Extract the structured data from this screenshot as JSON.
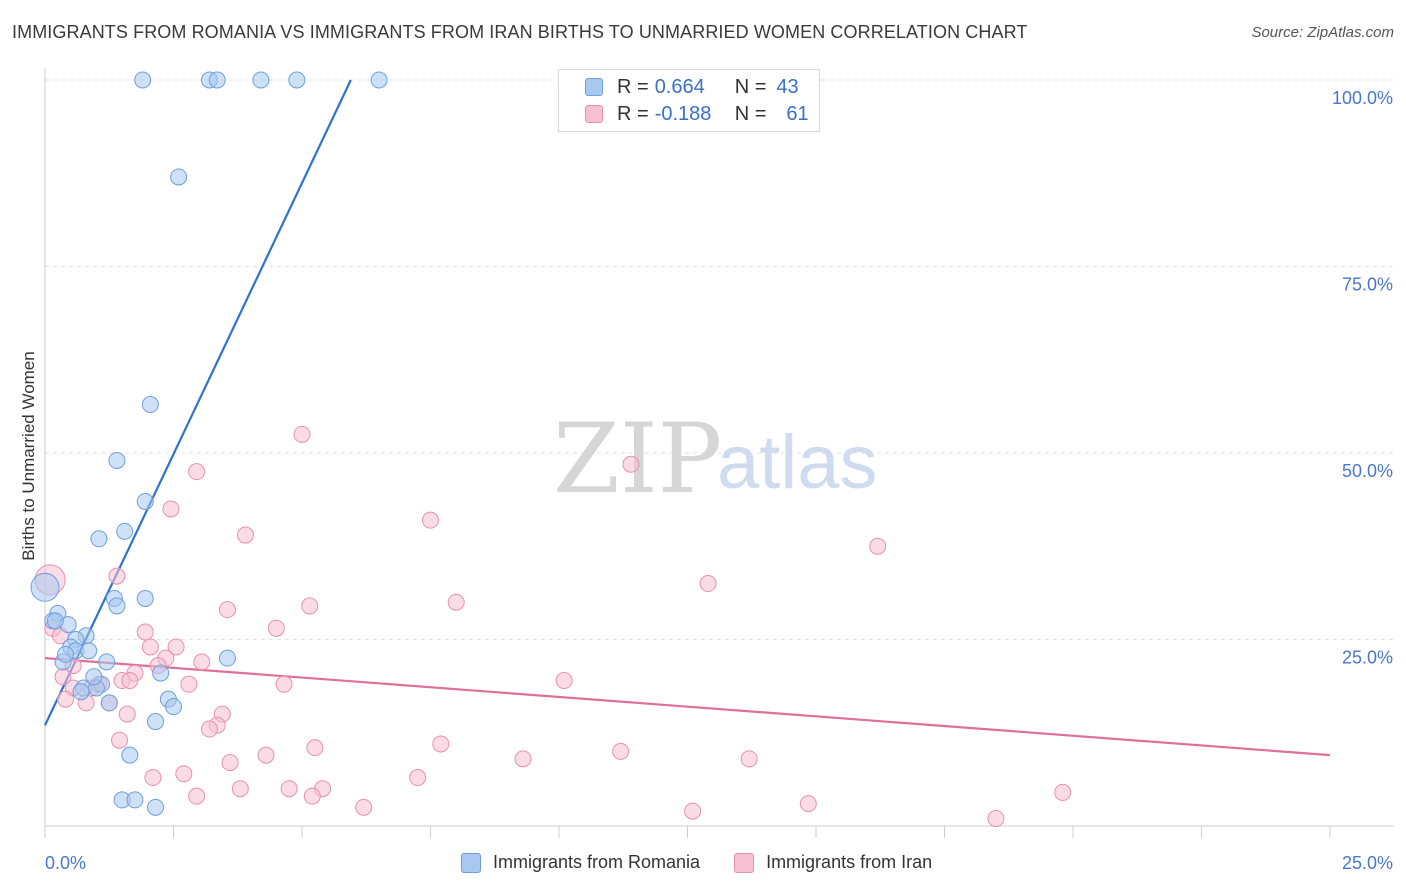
{
  "header": {
    "title": "IMMIGRANTS FROM ROMANIA VS IMMIGRANTS FROM IRAN BIRTHS TO UNMARRIED WOMEN CORRELATION CHART",
    "source": "Source: ZipAtlas.com"
  },
  "legend": {
    "r_label": "R =",
    "n_label": "N =",
    "romania": {
      "r": "0.664",
      "n": "43"
    },
    "iran": {
      "r": "-0.188",
      "n": "61"
    }
  },
  "watermark": {
    "zip": "ZIP",
    "atlas": "atlas"
  },
  "colors": {
    "romania_fill": "#a8c8f0",
    "romania_stroke": "#6e9fdc",
    "romania_line": "#2f72d0",
    "iran_fill": "#f7bfd2",
    "iran_stroke": "#e890b0",
    "iran_line": "#e0709a",
    "tick_text": "#4a78c8",
    "grid": "#e2e2e2"
  },
  "chart_data": {
    "type": "scatter",
    "title": "IMMIGRANTS FROM ROMANIA VS IMMIGRANTS FROM IRAN BIRTHS TO UNMARRIED WOMEN CORRELATION CHART",
    "xlabel": "",
    "ylabel": "Births to Unmarried Women",
    "xlim": [
      0,
      25
    ],
    "ylim": [
      0,
      102
    ],
    "x_tick_labels": [
      "0.0%",
      "25.0%"
    ],
    "y_ticks": [
      {
        "value": 25,
        "label": "25.0%"
      },
      {
        "value": 50,
        "label": "50.0%"
      },
      {
        "value": 75,
        "label": "75.0%"
      },
      {
        "value": 100,
        "label": "100.0%"
      }
    ],
    "grid": true,
    "legend_position": "top-center",
    "series": [
      {
        "name": "Immigrants from Romania",
        "color_key": "romania",
        "r": 0.664,
        "n": 43,
        "trend": {
          "x0": 0,
          "y0": 13.5,
          "x1": 5.95,
          "y1": 100
        },
        "points": [
          {
            "x": 1.9,
            "y": 100
          },
          {
            "x": 3.2,
            "y": 100
          },
          {
            "x": 3.35,
            "y": 100
          },
          {
            "x": 4.2,
            "y": 100
          },
          {
            "x": 4.9,
            "y": 100
          },
          {
            "x": 6.5,
            "y": 100
          },
          {
            "x": 2.6,
            "y": 87
          },
          {
            "x": 2.05,
            "y": 56.5
          },
          {
            "x": 1.4,
            "y": 49
          },
          {
            "x": 1.95,
            "y": 43.5
          },
          {
            "x": 1.55,
            "y": 39.5
          },
          {
            "x": 1.05,
            "y": 38.5
          },
          {
            "x": 1.95,
            "y": 30.5
          },
          {
            "x": 1.35,
            "y": 30.5
          },
          {
            "x": 1.4,
            "y": 29.5
          },
          {
            "x": 0.0,
            "y": 32
          },
          {
            "x": 0.25,
            "y": 28.5
          },
          {
            "x": 0.45,
            "y": 27
          },
          {
            "x": 0.15,
            "y": 27.5
          },
          {
            "x": 0.8,
            "y": 25.5
          },
          {
            "x": 0.6,
            "y": 25
          },
          {
            "x": 0.5,
            "y": 24
          },
          {
            "x": 0.6,
            "y": 23.5
          },
          {
            "x": 0.85,
            "y": 23.5
          },
          {
            "x": 0.35,
            "y": 22
          },
          {
            "x": 1.2,
            "y": 22
          },
          {
            "x": 3.55,
            "y": 22.5
          },
          {
            "x": 2.25,
            "y": 20.5
          },
          {
            "x": 1.1,
            "y": 19
          },
          {
            "x": 0.75,
            "y": 18.5
          },
          {
            "x": 1.0,
            "y": 18.5
          },
          {
            "x": 0.7,
            "y": 18
          },
          {
            "x": 1.25,
            "y": 16.5
          },
          {
            "x": 2.4,
            "y": 17
          },
          {
            "x": 2.5,
            "y": 16
          },
          {
            "x": 2.15,
            "y": 14
          },
          {
            "x": 1.65,
            "y": 9.5
          },
          {
            "x": 1.5,
            "y": 3.5
          },
          {
            "x": 1.75,
            "y": 3.5
          },
          {
            "x": 2.15,
            "y": 2.5
          },
          {
            "x": 0.2,
            "y": 27.5
          },
          {
            "x": 0.95,
            "y": 20
          },
          {
            "x": 0.4,
            "y": 23
          }
        ]
      },
      {
        "name": "Immigrants from Iran",
        "color_key": "iran",
        "r": -0.188,
        "n": 61,
        "trend": {
          "x0": 0,
          "y0": 22.5,
          "x1": 25,
          "y1": 9.5
        },
        "points": [
          {
            "x": 5.0,
            "y": 52.5
          },
          {
            "x": 11.4,
            "y": 48.5
          },
          {
            "x": 2.95,
            "y": 47.5
          },
          {
            "x": 2.45,
            "y": 42.5
          },
          {
            "x": 7.5,
            "y": 41
          },
          {
            "x": 3.9,
            "y": 39
          },
          {
            "x": 16.2,
            "y": 37.5
          },
          {
            "x": 12.9,
            "y": 32.5
          },
          {
            "x": 1.4,
            "y": 33.5
          },
          {
            "x": 8.0,
            "y": 30
          },
          {
            "x": 5.15,
            "y": 29.5
          },
          {
            "x": 3.55,
            "y": 29
          },
          {
            "x": 4.5,
            "y": 26.5
          },
          {
            "x": 1.95,
            "y": 26
          },
          {
            "x": 0.15,
            "y": 26.5
          },
          {
            "x": 0.3,
            "y": 25.5
          },
          {
            "x": 2.55,
            "y": 24
          },
          {
            "x": 2.05,
            "y": 24
          },
          {
            "x": 2.35,
            "y": 22.5
          },
          {
            "x": 3.05,
            "y": 22
          },
          {
            "x": 2.2,
            "y": 21.5
          },
          {
            "x": 0.55,
            "y": 21.5
          },
          {
            "x": 1.75,
            "y": 20.5
          },
          {
            "x": 1.5,
            "y": 19.5
          },
          {
            "x": 1.65,
            "y": 19.5
          },
          {
            "x": 2.8,
            "y": 19
          },
          {
            "x": 4.65,
            "y": 19
          },
          {
            "x": 10.1,
            "y": 19.5
          },
          {
            "x": 0.35,
            "y": 20
          },
          {
            "x": 0.55,
            "y": 18.5
          },
          {
            "x": 0.9,
            "y": 18.5
          },
          {
            "x": 1.05,
            "y": 19
          },
          {
            "x": 0.8,
            "y": 16.5
          },
          {
            "x": 1.25,
            "y": 16.5
          },
          {
            "x": 1.6,
            "y": 15
          },
          {
            "x": 3.45,
            "y": 15
          },
          {
            "x": 3.35,
            "y": 13.5
          },
          {
            "x": 3.2,
            "y": 13
          },
          {
            "x": 5.25,
            "y": 10.5
          },
          {
            "x": 7.7,
            "y": 11
          },
          {
            "x": 11.2,
            "y": 10
          },
          {
            "x": 4.3,
            "y": 9.5
          },
          {
            "x": 9.3,
            "y": 9
          },
          {
            "x": 13.7,
            "y": 9
          },
          {
            "x": 3.6,
            "y": 8.5
          },
          {
            "x": 2.7,
            "y": 7
          },
          {
            "x": 7.25,
            "y": 6.5
          },
          {
            "x": 2.1,
            "y": 6.5
          },
          {
            "x": 3.8,
            "y": 5
          },
          {
            "x": 4.75,
            "y": 5
          },
          {
            "x": 5.4,
            "y": 5
          },
          {
            "x": 2.95,
            "y": 4
          },
          {
            "x": 5.2,
            "y": 4
          },
          {
            "x": 19.8,
            "y": 4.5
          },
          {
            "x": 14.85,
            "y": 3
          },
          {
            "x": 12.6,
            "y": 2
          },
          {
            "x": 6.2,
            "y": 2.5
          },
          {
            "x": 18.5,
            "y": 1
          },
          {
            "x": 0.1,
            "y": 33
          },
          {
            "x": 0.4,
            "y": 17
          },
          {
            "x": 1.45,
            "y": 11.5
          }
        ]
      }
    ]
  },
  "bottom_legend": {
    "romania": "Immigrants from Romania",
    "iran": "Immigrants from Iran"
  }
}
